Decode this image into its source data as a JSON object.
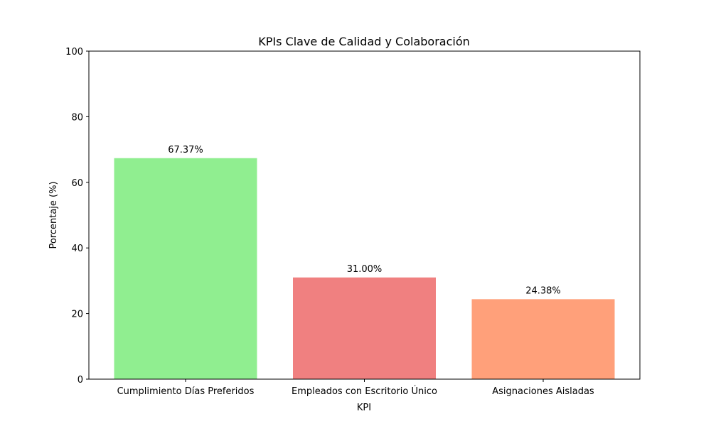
{
  "chart_data": {
    "type": "bar",
    "title": "KPIs Clave de Calidad y Colaboración",
    "xlabel": "KPI",
    "ylabel": "Porcentaje (%)",
    "categories": [
      "Cumplimiento Días Preferidos",
      "Empleados con Escritorio Único",
      "Asignaciones Aisladas"
    ],
    "values": [
      67.37,
      31.0,
      24.38
    ],
    "data_labels": [
      "67.37%",
      "31.00%",
      "24.38%"
    ],
    "colors": [
      "#90ee90",
      "#f08080",
      "#ffa07a"
    ],
    "ylim": [
      0,
      100
    ],
    "yticks": [
      0,
      20,
      40,
      60,
      80,
      100
    ],
    "ytick_labels": [
      "0",
      "20",
      "40",
      "60",
      "80",
      "100"
    ],
    "grid": false,
    "legend": "none"
  }
}
